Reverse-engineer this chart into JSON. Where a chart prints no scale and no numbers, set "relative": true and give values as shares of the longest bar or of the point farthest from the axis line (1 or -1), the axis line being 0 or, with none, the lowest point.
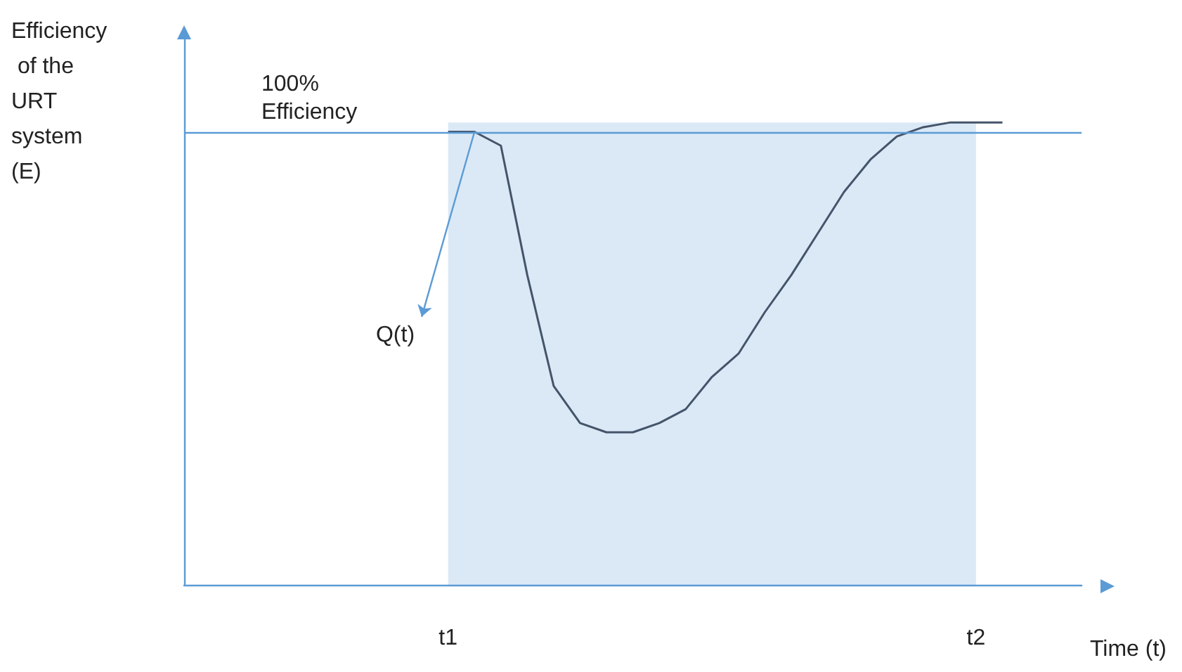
{
  "chart_data": {
    "type": "line",
    "relative": true,
    "ylabel": "Efficiency of the URT system (E)",
    "xlabel": "Time (t)",
    "categories": [
      null,
      null,
      null,
      null,
      null,
      null,
      null,
      null,
      null,
      null,
      "t1",
      null,
      null,
      null,
      null,
      null,
      null,
      null,
      null,
      null,
      null,
      null,
      null,
      null,
      null,
      null,
      null,
      null,
      null,
      null,
      "t2",
      null,
      null,
      null,
      null
    ],
    "series": [
      {
        "color": "#44546a",
        "values": [
          null,
          null,
          null,
          null,
          null,
          null,
          null,
          null,
          null,
          null,
          0.98,
          0.98,
          0.95,
          0.67,
          0.43,
          0.35,
          0.33,
          0.33,
          0.35,
          0.38,
          0.45,
          0.5,
          0.59,
          0.67,
          0.76,
          0.85,
          0.92,
          0.97,
          0.99,
          1.0,
          1.0,
          1.0,
          null,
          null,
          null
        ]
      }
    ],
    "ref_lines": [
      {
        "axis": "y",
        "value": 0.98,
        "label": "100% Efficiency",
        "color": "#5b9bd5"
      }
    ],
    "bands": [
      {
        "axis": "x",
        "from": "t1",
        "to": "t2",
        "label": null,
        "color": "#5b9bd5"
      }
    ],
    "annotations": [
      "Q(t)"
    ],
    "grid": false,
    "marker": "none",
    "line_style": "solid"
  }
}
